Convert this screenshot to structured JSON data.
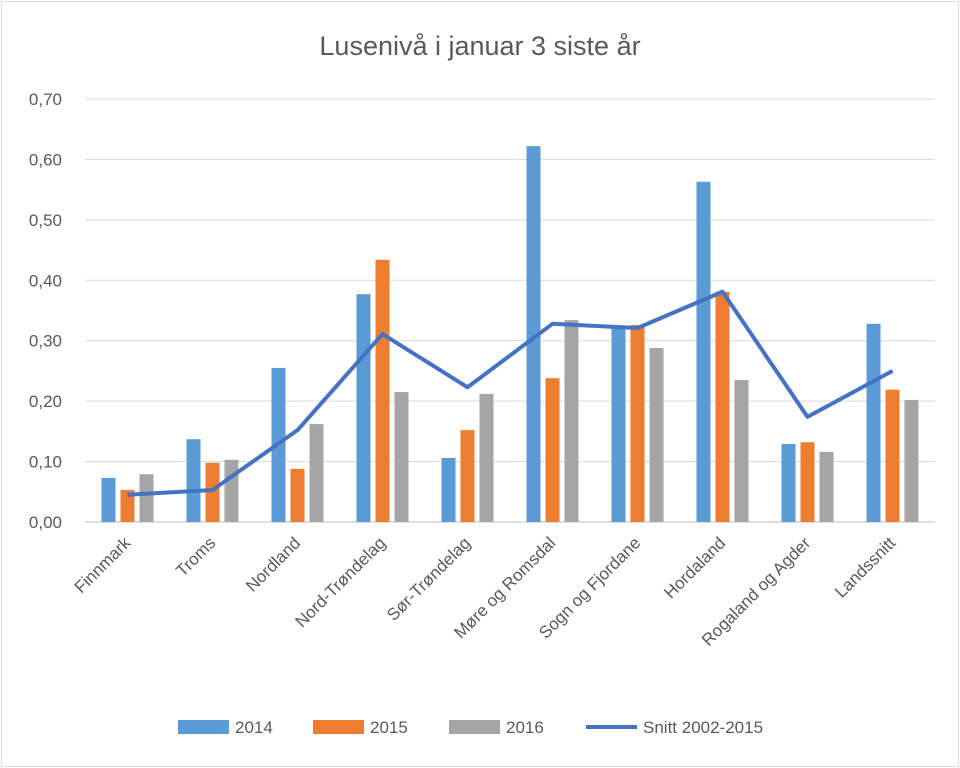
{
  "chart_data": {
    "type": "bar",
    "title": "Lusenivå i januar 3 siste år",
    "xlabel": "",
    "ylabel": "",
    "ylim": [
      0,
      0.7
    ],
    "yticks": [
      "0,00",
      "0,10",
      "0,20",
      "0,30",
      "0,40",
      "0,50",
      "0,60",
      "0,70"
    ],
    "grid": true,
    "legend_position": "bottom",
    "categories": [
      "Finnmark",
      "Troms",
      "Nordland",
      "Nord-Trøndelag",
      "Sør-Trøndelag",
      "Møre og Romsdal",
      "Sogn og Fjordane",
      "Hordaland",
      "Rogaland og Agder",
      "Landssnitt"
    ],
    "series": [
      {
        "name": "2014",
        "type": "bar",
        "color": "#5b9bd5",
        "values": [
          0.073,
          0.137,
          0.255,
          0.377,
          0.106,
          0.622,
          0.322,
          0.563,
          0.129,
          0.328
        ]
      },
      {
        "name": "2015",
        "type": "bar",
        "color": "#ed7d31",
        "values": [
          0.053,
          0.098,
          0.088,
          0.434,
          0.152,
          0.238,
          0.326,
          0.381,
          0.132,
          0.219
        ]
      },
      {
        "name": "2016",
        "type": "bar",
        "color": "#a5a5a5",
        "values": [
          0.079,
          0.103,
          0.162,
          0.215,
          0.212,
          0.334,
          0.288,
          0.235,
          0.116,
          0.202
        ]
      },
      {
        "name": "Snitt 2002-2015",
        "type": "line",
        "color": "#4472c4",
        "values": [
          0.045,
          0.053,
          0.152,
          0.311,
          0.223,
          0.328,
          0.321,
          0.381,
          0.174,
          0.25
        ]
      }
    ]
  }
}
